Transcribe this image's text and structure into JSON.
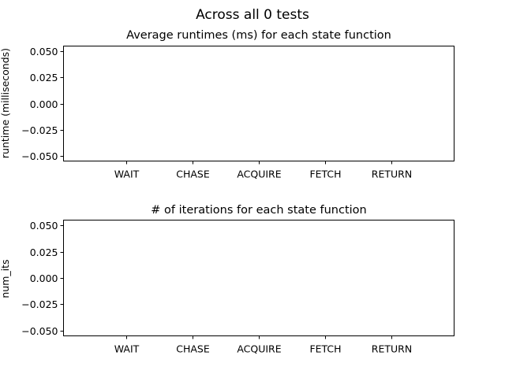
{
  "figure": {
    "suptitle": "Across all 0 tests"
  },
  "chart_data": [
    {
      "type": "bar",
      "title": "Average runtimes (ms) for each state function",
      "xlabel": "",
      "ylabel": "runtime (milliseconds)",
      "categories": [
        "WAIT",
        "CHASE",
        "ACQUIRE",
        "FETCH",
        "RETURN"
      ],
      "series": [
        {
          "values": [
            null,
            null,
            null,
            null,
            null
          ]
        }
      ],
      "ylim": [
        -0.055,
        0.055
      ],
      "yticks": [
        -0.05,
        -0.025,
        0.0,
        0.025,
        0.05
      ],
      "ytick_labels": [
        "−0.050",
        "−0.025",
        "0.000",
        "0.025",
        "0.050"
      ],
      "grid": false,
      "legend": "none"
    },
    {
      "type": "bar",
      "title": "# of iterations for each state function",
      "xlabel": "",
      "ylabel": "num_its",
      "categories": [
        "WAIT",
        "CHASE",
        "ACQUIRE",
        "FETCH",
        "RETURN"
      ],
      "series": [
        {
          "values": [
            null,
            null,
            null,
            null,
            null
          ]
        }
      ],
      "ylim": [
        -0.055,
        0.055
      ],
      "yticks": [
        -0.05,
        -0.025,
        0.0,
        0.025,
        0.05
      ],
      "ytick_labels": [
        "−0.050",
        "−0.025",
        "0.000",
        "0.025",
        "0.050"
      ],
      "grid": false,
      "legend": "none"
    }
  ]
}
